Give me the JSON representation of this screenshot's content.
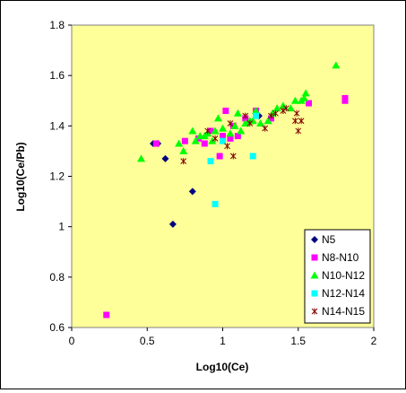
{
  "chart_data": {
    "type": "scatter",
    "xlabel": "Log10(Ce)",
    "ylabel": "Log10(Ce/Pb)",
    "xlim": [
      0,
      2
    ],
    "ylim": [
      0.6,
      1.8
    ],
    "xticks": [
      0,
      0.5,
      1,
      1.5,
      2
    ],
    "xtick_labels": [
      "0",
      "0.5",
      "1",
      "1.5",
      "2"
    ],
    "yticks": [
      0.6,
      0.8,
      1.0,
      1.2,
      1.4,
      1.6,
      1.8
    ],
    "ytick_labels": [
      "0.6",
      "0.8",
      "1",
      "1.2",
      "1.4",
      "1.6",
      "1.8"
    ],
    "grid": false,
    "plot_background": "#FFFF99",
    "legend_position": "bottom-right",
    "series": [
      {
        "name": "N5",
        "marker": "diamond",
        "color": "#000080",
        "points": [
          [
            0.54,
            1.33
          ],
          [
            0.57,
            1.33
          ],
          [
            0.62,
            1.27
          ],
          [
            0.8,
            1.14
          ],
          [
            0.67,
            1.01
          ],
          [
            1.22,
            1.45
          ],
          [
            1.24,
            1.44
          ]
        ]
      },
      {
        "name": "N8-N10",
        "marker": "square",
        "color": "#FF00FF",
        "points": [
          [
            0.23,
            0.65
          ],
          [
            0.56,
            1.33
          ],
          [
            0.75,
            1.34
          ],
          [
            0.84,
            1.35
          ],
          [
            0.88,
            1.33
          ],
          [
            0.92,
            1.38
          ],
          [
            0.98,
            1.28
          ],
          [
            1.0,
            1.36
          ],
          [
            1.02,
            1.46
          ],
          [
            1.05,
            1.35
          ],
          [
            1.07,
            1.4
          ],
          [
            1.1,
            1.36
          ],
          [
            1.15,
            1.43
          ],
          [
            1.22,
            1.46
          ],
          [
            1.32,
            1.43
          ],
          [
            1.57,
            1.49
          ],
          [
            1.81,
            1.5
          ],
          [
            1.81,
            1.51
          ]
        ]
      },
      {
        "name": "N10-N12",
        "marker": "triangle",
        "color": "#00FF00",
        "points": [
          [
            0.46,
            1.27
          ],
          [
            0.71,
            1.33
          ],
          [
            0.74,
            1.3
          ],
          [
            0.8,
            1.38
          ],
          [
            0.82,
            1.34
          ],
          [
            0.85,
            1.36
          ],
          [
            0.88,
            1.36
          ],
          [
            0.9,
            1.37
          ],
          [
            0.93,
            1.34
          ],
          [
            0.95,
            1.38
          ],
          [
            0.97,
            1.43
          ],
          [
            1.0,
            1.39
          ],
          [
            1.05,
            1.37
          ],
          [
            1.08,
            1.4
          ],
          [
            1.1,
            1.45
          ],
          [
            1.12,
            1.38
          ],
          [
            1.15,
            1.41
          ],
          [
            1.18,
            1.42
          ],
          [
            1.2,
            1.42
          ],
          [
            1.22,
            1.46
          ],
          [
            1.25,
            1.41
          ],
          [
            1.3,
            1.42
          ],
          [
            1.33,
            1.45
          ],
          [
            1.36,
            1.47
          ],
          [
            1.4,
            1.48
          ],
          [
            1.45,
            1.47
          ],
          [
            1.48,
            1.5
          ],
          [
            1.52,
            1.5
          ],
          [
            1.54,
            1.51
          ],
          [
            1.55,
            1.53
          ],
          [
            1.75,
            1.64
          ]
        ]
      },
      {
        "name": "N12-N14",
        "marker": "square",
        "color": "#00FFFF",
        "points": [
          [
            0.92,
            1.26
          ],
          [
            0.95,
            1.09
          ],
          [
            1.0,
            1.34
          ],
          [
            1.2,
            1.28
          ],
          [
            1.22,
            1.44
          ]
        ]
      },
      {
        "name": "N14-N15",
        "marker": "star",
        "color": "#800000",
        "points": [
          [
            0.74,
            1.26
          ],
          [
            0.9,
            1.38
          ],
          [
            0.95,
            1.35
          ],
          [
            1.03,
            1.32
          ],
          [
            1.05,
            1.41
          ],
          [
            1.07,
            1.28
          ],
          [
            1.15,
            1.44
          ],
          [
            1.18,
            1.41
          ],
          [
            1.28,
            1.39
          ],
          [
            1.32,
            1.44
          ],
          [
            1.35,
            1.45
          ],
          [
            1.4,
            1.46
          ],
          [
            1.42,
            1.47
          ],
          [
            1.48,
            1.42
          ],
          [
            1.49,
            1.45
          ],
          [
            1.5,
            1.38
          ],
          [
            1.52,
            1.42
          ]
        ]
      }
    ]
  }
}
